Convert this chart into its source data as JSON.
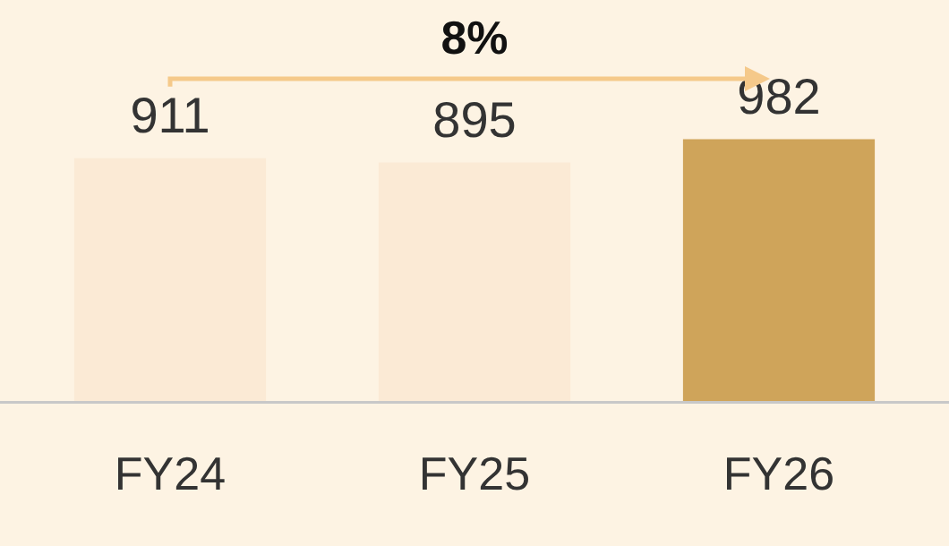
{
  "chart_data": {
    "type": "bar",
    "categories": [
      "FY24",
      "FY25",
      "FY26"
    ],
    "values": [
      911,
      895,
      982
    ],
    "colors": [
      "#fbead5",
      "#fbead5",
      "#cfa45a"
    ],
    "data_labels": true,
    "legend": false,
    "annotations": [
      "8%"
    ]
  }
}
